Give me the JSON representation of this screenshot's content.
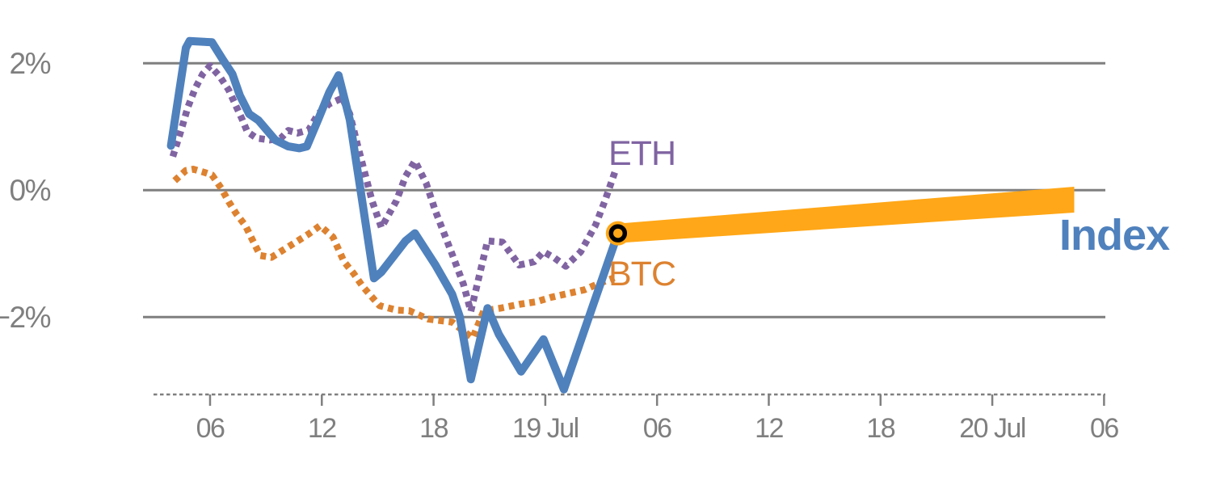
{
  "chart_data": {
    "type": "line",
    "title": "",
    "grid": true,
    "background": "#ffffff",
    "axis_color": "#7F7F7F",
    "y_axis": {
      "unit": "%",
      "range": [
        -3.3,
        2.85
      ],
      "ticks": [
        {
          "label": "2%",
          "value": 2
        },
        {
          "label": "0%",
          "value": 0
        },
        {
          "label": "−2%",
          "value": -2
        }
      ]
    },
    "x_axis": {
      "unit": "hours (time of day across 18–20 Jul)",
      "range_hours": [
        2.4,
        54.6
      ],
      "ticks": [
        {
          "label": "06",
          "hour": 6
        },
        {
          "label": "12",
          "hour": 12
        },
        {
          "label": "18",
          "hour": 18
        },
        {
          "label": "19 Jul",
          "hour": 24
        },
        {
          "label": "06",
          "hour": 30
        },
        {
          "label": "12",
          "hour": 36
        },
        {
          "label": "18",
          "hour": 42
        },
        {
          "label": "20 Jul",
          "hour": 48
        },
        {
          "label": "06",
          "hour": 54
        }
      ]
    },
    "series": [
      {
        "name": "ETH",
        "label": "ETH",
        "color": "#8064A2",
        "style": "dotted",
        "width": 8.5,
        "points": [
          [
            4.0,
            0.53
          ],
          [
            4.4,
            0.9
          ],
          [
            4.8,
            1.3
          ],
          [
            5.2,
            1.6
          ],
          [
            5.6,
            1.83
          ],
          [
            6.0,
            1.96
          ],
          [
            6.5,
            1.8
          ],
          [
            7.0,
            1.58
          ],
          [
            7.4,
            1.32
          ],
          [
            7.7,
            1.13
          ],
          [
            8.0,
            0.92
          ],
          [
            8.5,
            0.82
          ],
          [
            9.2,
            0.79
          ],
          [
            9.8,
            0.82
          ],
          [
            10.2,
            0.94
          ],
          [
            10.7,
            0.9
          ],
          [
            11.3,
            0.95
          ],
          [
            11.8,
            1.2
          ],
          [
            12.4,
            1.36
          ],
          [
            13.1,
            1.45
          ],
          [
            13.5,
            1.2
          ],
          [
            13.9,
            0.73
          ],
          [
            14.7,
            -0.17
          ],
          [
            15.2,
            -0.59
          ],
          [
            16.0,
            -0.17
          ],
          [
            16.5,
            0.22
          ],
          [
            17.0,
            0.46
          ],
          [
            17.6,
            0.11
          ],
          [
            18.1,
            -0.33
          ],
          [
            19.0,
            -1.01
          ],
          [
            19.6,
            -1.48
          ],
          [
            20.0,
            -1.91
          ],
          [
            20.9,
            -0.8
          ],
          [
            21.7,
            -0.82
          ],
          [
            22.6,
            -1.18
          ],
          [
            23.4,
            -1.13
          ],
          [
            23.9,
            -0.97
          ],
          [
            24.5,
            -1.07
          ],
          [
            25.1,
            -1.2
          ],
          [
            25.9,
            -0.97
          ],
          [
            26.7,
            -0.55
          ],
          [
            27.2,
            -0.17
          ],
          [
            27.8,
            0.34
          ]
        ]
      },
      {
        "name": "BTC",
        "label": "BTC",
        "color": "#DD8230",
        "style": "dotted",
        "width": 8.5,
        "points": [
          [
            4.1,
            0.15
          ],
          [
            4.7,
            0.31
          ],
          [
            5.1,
            0.33
          ],
          [
            5.7,
            0.28
          ],
          [
            6.1,
            0.24
          ],
          [
            6.6,
            0.03
          ],
          [
            7.0,
            -0.18
          ],
          [
            7.4,
            -0.37
          ],
          [
            7.9,
            -0.56
          ],
          [
            8.3,
            -0.8
          ],
          [
            8.7,
            -1.03
          ],
          [
            9.3,
            -1.06
          ],
          [
            10.0,
            -0.93
          ],
          [
            10.6,
            -0.82
          ],
          [
            11.3,
            -0.69
          ],
          [
            11.9,
            -0.56
          ],
          [
            12.6,
            -0.74
          ],
          [
            13.2,
            -1.13
          ],
          [
            13.7,
            -1.31
          ],
          [
            14.2,
            -1.52
          ],
          [
            15.1,
            -1.82
          ],
          [
            16.0,
            -1.89
          ],
          [
            16.7,
            -1.9
          ],
          [
            17.7,
            -2.03
          ],
          [
            19.0,
            -2.08
          ],
          [
            19.6,
            -2.22
          ],
          [
            20.1,
            -2.33
          ],
          [
            20.7,
            -1.9
          ],
          [
            21.6,
            -1.86
          ],
          [
            22.6,
            -1.8
          ],
          [
            23.5,
            -1.76
          ],
          [
            24.3,
            -1.69
          ],
          [
            25.2,
            -1.63
          ],
          [
            26.1,
            -1.57
          ],
          [
            26.8,
            -1.48
          ],
          [
            27.7,
            -1.38
          ]
        ]
      },
      {
        "name": "Index",
        "label": "Index",
        "color": "#4F81BD",
        "style": "solid",
        "width": 10,
        "points": [
          [
            3.9,
            0.7
          ],
          [
            4.7,
            2.24
          ],
          [
            4.9,
            2.35
          ],
          [
            6.1,
            2.33
          ],
          [
            6.7,
            2.05
          ],
          [
            7.2,
            1.83
          ],
          [
            7.6,
            1.49
          ],
          [
            8.1,
            1.2
          ],
          [
            8.6,
            1.1
          ],
          [
            9.5,
            0.79
          ],
          [
            10.2,
            0.69
          ],
          [
            10.8,
            0.66
          ],
          [
            11.2,
            0.69
          ],
          [
            11.8,
            1.11
          ],
          [
            12.4,
            1.54
          ],
          [
            12.9,
            1.81
          ],
          [
            13.5,
            1.11
          ],
          [
            14.1,
            -0.04
          ],
          [
            14.8,
            -1.39
          ],
          [
            15.2,
            -1.29
          ],
          [
            16.5,
            -0.8
          ],
          [
            17.0,
            -0.68
          ],
          [
            18.1,
            -1.18
          ],
          [
            19.0,
            -1.64
          ],
          [
            19.4,
            -1.99
          ],
          [
            20.0,
            -2.98
          ],
          [
            20.9,
            -1.86
          ],
          [
            21.5,
            -2.27
          ],
          [
            22.7,
            -2.86
          ],
          [
            23.9,
            -2.35
          ],
          [
            25.0,
            -3.14
          ],
          [
            27.9,
            -0.68
          ]
        ]
      },
      {
        "name": "Index projection",
        "label": "",
        "color": "#FFA718",
        "style": "wedge",
        "half_width_start": 12,
        "half_width_end": 16,
        "points": [
          [
            27.9,
            -0.68
          ],
          [
            52.4,
            -0.15
          ]
        ]
      }
    ],
    "marker": {
      "hour": 27.9,
      "pct": -0.68,
      "fill": "#FFA718",
      "ring_color": "#000000"
    }
  }
}
